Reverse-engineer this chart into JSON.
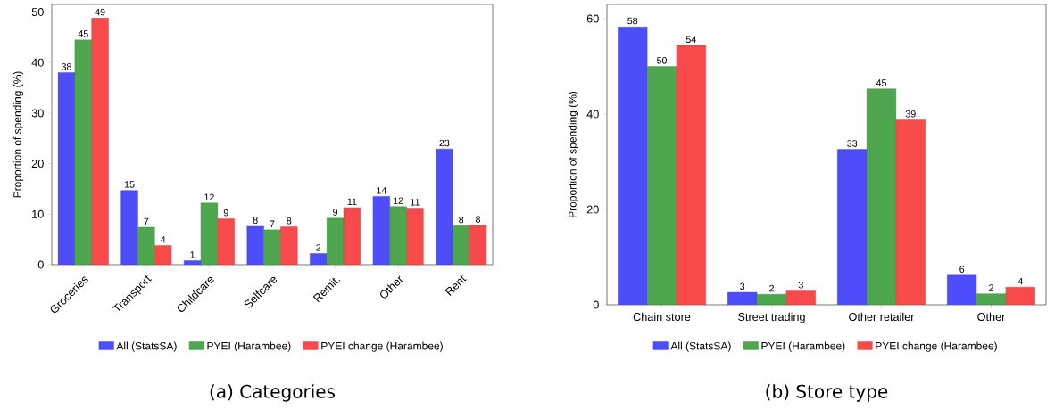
{
  "chart_data": [
    {
      "type": "bar",
      "title": "(a) Categories",
      "ylabel": "Proportion of spending (%)",
      "categories": [
        "Groceries",
        "Transport",
        "Childcare",
        "Selfcare",
        "Remit.",
        "Other",
        "Rent"
      ],
      "series": [
        {
          "name": "All (StatsSA)",
          "color": "#4d4dfa",
          "values": [
            38,
            14.7,
            0.8,
            7.6,
            2.2,
            13.5,
            22.9
          ],
          "value_labels": [
            "38",
            "15",
            "1",
            "8",
            "2",
            "14",
            "23"
          ]
        },
        {
          "name": "PYEI (Harambee)",
          "color": "#4ea64e",
          "values": [
            44.5,
            7.4,
            12.2,
            6.9,
            9.2,
            11.5,
            7.7
          ],
          "value_labels": [
            "45",
            "7",
            "12",
            "7",
            "9",
            "12",
            "8"
          ]
        },
        {
          "name": "PYEI change (Harambee)",
          "color": "#f84a4a",
          "values": [
            48.8,
            3.8,
            9.1,
            7.5,
            11.3,
            11.2,
            7.8
          ],
          "value_labels": [
            "49",
            "4",
            "9",
            "8",
            "11",
            "11",
            "8"
          ]
        }
      ],
      "ylim": [
        0,
        51.5
      ],
      "yticks": [
        0,
        10,
        20,
        30,
        40,
        50
      ],
      "legend": "bottom"
    },
    {
      "type": "bar",
      "title": "(b) Store type",
      "ylabel": "Proportion of spending (%)",
      "categories": [
        "Chain store",
        "Street trading",
        "Other retailer",
        "Other"
      ],
      "series": [
        {
          "name": "All (StatsSA)",
          "color": "#4d4dfa",
          "values": [
            58.3,
            2.6,
            32.6,
            6.2
          ],
          "value_labels": [
            "58",
            "3",
            "33",
            "6"
          ]
        },
        {
          "name": "PYEI (Harambee)",
          "color": "#4ea64e",
          "values": [
            50,
            2.2,
            45.3,
            2.3
          ],
          "value_labels": [
            "50",
            "2",
            "45",
            "2"
          ]
        },
        {
          "name": "PYEI change (Harambee)",
          "color": "#f84a4a",
          "values": [
            54.4,
            2.9,
            38.8,
            3.7
          ],
          "value_labels": [
            "54",
            "3",
            "39",
            "4"
          ]
        }
      ],
      "ylim": [
        0,
        63
      ],
      "yticks": [
        0,
        20,
        40,
        60
      ],
      "legend": "bottom"
    }
  ]
}
